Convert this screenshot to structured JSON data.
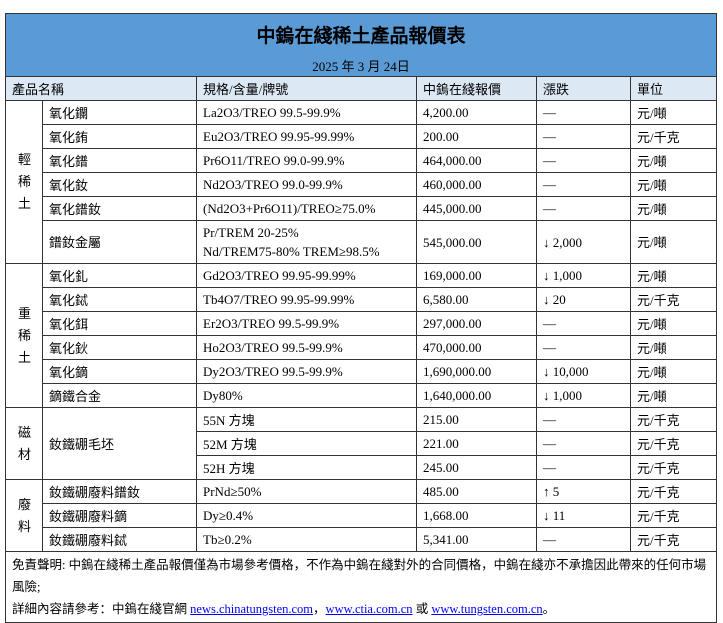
{
  "title": "中鎢在綫稀土產品報價表",
  "date": "2025 年 3 月 24日",
  "headers": {
    "name": "產品名稱",
    "spec": "規格/含量/牌號",
    "price": "中鎢在綫報價",
    "change": "漲跌",
    "unit": "單位"
  },
  "groups": [
    {
      "category": "輕稀土",
      "rows": [
        {
          "name": "氧化鑭",
          "spec": "La2O3/TREO 99.5-99.9%",
          "price": "4,200.00",
          "change": "—",
          "unit": "元/噸"
        },
        {
          "name": "氧化銪",
          "spec": "Eu2O3/TREO 99.95-99.99%",
          "price": "200.00",
          "change": "—",
          "unit": "元/千克"
        },
        {
          "name": "氧化鐠",
          "spec": "Pr6O11/TREO 99.0-99.9%",
          "price": "464,000.00",
          "change": "—",
          "unit": "元/噸"
        },
        {
          "name": "氧化釹",
          "spec": "Nd2O3/TREO 99.0-99.9%",
          "price": "460,000.00",
          "change": "—",
          "unit": "元/噸"
        },
        {
          "name": "氧化鐠釹",
          "spec": "(Nd2O3+Pr6O11)/TREO≥75.0%",
          "price": "445,000.00",
          "change": "—",
          "unit": "元/噸"
        },
        {
          "name": "鐠釹金屬",
          "spec": "Pr/TREM 20-25%",
          "spec2": "Nd/TREM75-80% TREM≥98.5%",
          "price": "545,000.00",
          "change": "↓ 2,000",
          "unit": "元/噸"
        }
      ]
    },
    {
      "category": "重稀土",
      "rows": [
        {
          "name": "氧化釓",
          "spec": "Gd2O3/TREO 99.95-99.99%",
          "price": "169,000.00",
          "change": "↓ 1,000",
          "unit": "元/噸"
        },
        {
          "name": "氧化鋱",
          "spec": "Tb4O7/TREO 99.95-99.99%",
          "price": "6,580.00",
          "change": "↓ 20",
          "unit": "元/千克"
        },
        {
          "name": "氧化鉺",
          "spec": "Er2O3/TREO 99.5-99.9%",
          "price": "297,000.00",
          "change": "—",
          "unit": "元/噸"
        },
        {
          "name": "氧化鈥",
          "spec": "Ho2O3/TREO 99.5-99.9%",
          "price": "470,000.00",
          "change": "—",
          "unit": "元/噸"
        },
        {
          "name": "氧化鏑",
          "spec": "Dy2O3/TREO 99.5-99.9%",
          "price": "1,690,000.00",
          "change": "↓ 10,000",
          "unit": "元/噸"
        },
        {
          "name": "鏑鐵合金",
          "spec": "Dy80%",
          "price": "1,640,000.00",
          "change": "↓ 1,000",
          "unit": "元/噸"
        }
      ]
    },
    {
      "category": "磁材",
      "name": "釹鐵硼毛坯",
      "rows": [
        {
          "spec": "55N 方塊",
          "price": "215.00",
          "change": "—",
          "unit": "元/千克"
        },
        {
          "spec": "52M 方塊",
          "price": "221.00",
          "change": "—",
          "unit": "元/千克"
        },
        {
          "spec": "52H 方塊",
          "price": "245.00",
          "change": "—",
          "unit": "元/千克"
        }
      ]
    },
    {
      "category": "廢料",
      "rows": [
        {
          "name": "釹鐵硼廢料鐠釹",
          "spec": "PrNd≥50%",
          "price": "485.00",
          "change": "↑ 5",
          "unit": "元/千克"
        },
        {
          "name": "釹鐵硼廢料鏑",
          "spec": "Dy≥0.4%",
          "price": "1,668.00",
          "change": "↓ 11",
          "unit": "元/千克"
        },
        {
          "name": "釹鐵硼廢料鋱",
          "spec": "Tb≥0.2%",
          "price": "5,341.00",
          "change": "—",
          "unit": "元/千克"
        }
      ]
    }
  ],
  "footer": {
    "disclaimer": "免責聲明: 中鎢在綫稀土產品報價僅為市場參考價格，不作為中鎢在綫對外的合同價格，中鎢在綫亦不承擔因此帶來的任何市場風險;",
    "ref_prefix": "詳細內容請參考：中鎢在綫官網 ",
    "link1": "news.chinatungsten.com",
    "sep": "，",
    "link2": "www.ctia.com.cn",
    "or": " 或 ",
    "link3": "www.tungsten.com.cn",
    "end": "。"
  }
}
